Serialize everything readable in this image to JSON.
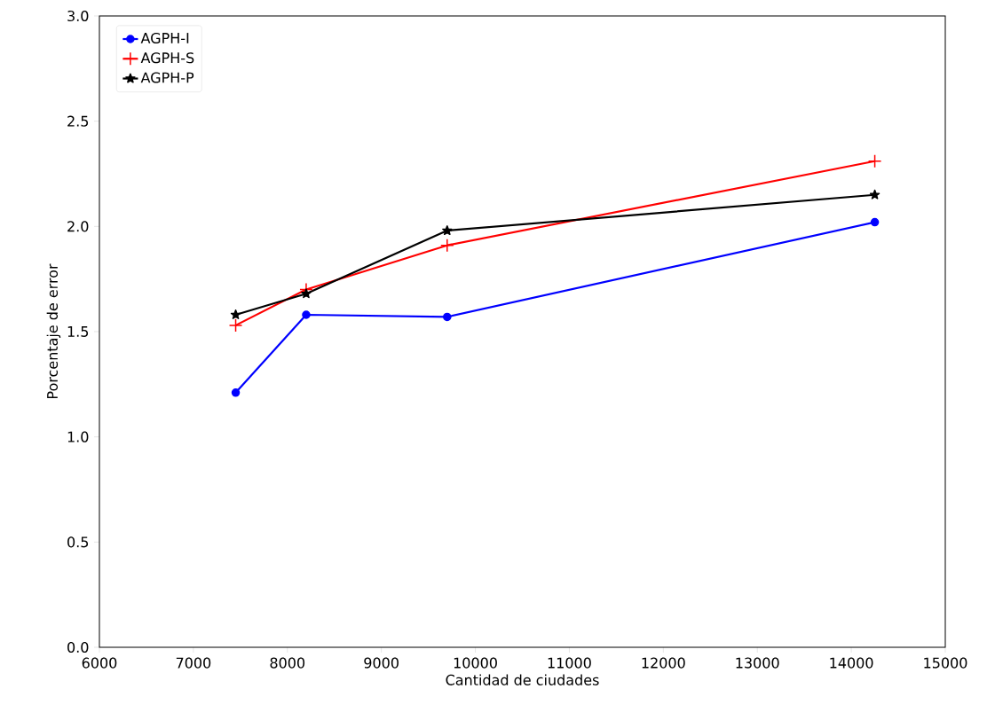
{
  "chart_data": {
    "type": "line",
    "xlabel": "Cantidad de ciudades",
    "ylabel": "Porcentaje de error",
    "x": [
      7450,
      8200,
      9700,
      14250
    ],
    "series": [
      {
        "name": "AGPH-I",
        "color": "#0000ff",
        "marker": "circle",
        "values": [
          1.21,
          1.58,
          1.57,
          2.02
        ]
      },
      {
        "name": "AGPH-S",
        "color": "#ff0000",
        "marker": "cross",
        "values": [
          1.53,
          1.7,
          1.91,
          2.31
        ]
      },
      {
        "name": "AGPH-P",
        "color": "#000000",
        "marker": "star",
        "values": [
          1.58,
          1.68,
          1.98,
          2.15
        ]
      }
    ],
    "xlim": [
      6000,
      15000
    ],
    "xticks": [
      6000,
      7000,
      8000,
      9000,
      10000,
      11000,
      12000,
      13000,
      14000,
      15000
    ],
    "ylim": [
      0,
      3.0
    ],
    "yticks": [
      {
        "value": 0,
        "label": "0.0"
      },
      0.5,
      {
        "value": 1,
        "label": "1.0"
      },
      1.5,
      {
        "value": 2,
        "label": "2.0"
      },
      2.5,
      {
        "value": 3,
        "label": "3.0"
      }
    ],
    "grid": false,
    "legend": "top left"
  }
}
